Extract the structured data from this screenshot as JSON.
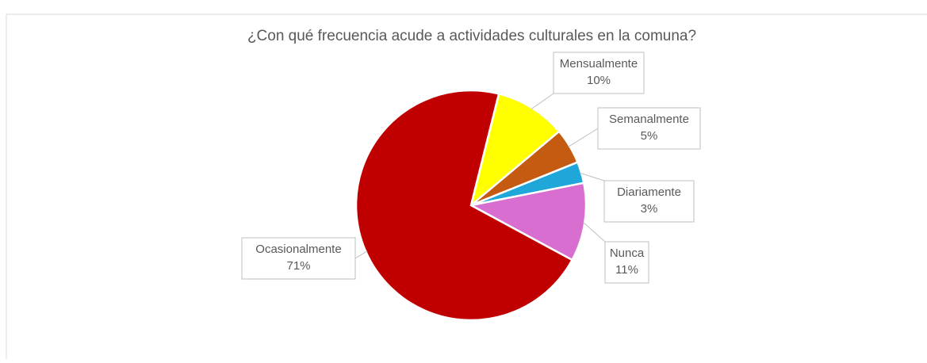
{
  "chart_data": {
    "type": "pie",
    "title": "¿Con qué frecuencia acude a actividades culturales en la comuna?",
    "categories": [
      "Mensualmente",
      "Semanalmente",
      "Diariamente",
      "Nunca",
      "Ocasionalmente"
    ],
    "values": [
      10,
      5,
      3,
      11,
      71
    ],
    "value_labels": [
      "10%",
      "5%",
      "3%",
      "11%",
      "71%"
    ],
    "colors": [
      "#ffff00",
      "#c55a11",
      "#1fa7d9",
      "#d86ecf",
      "#c00000"
    ]
  }
}
